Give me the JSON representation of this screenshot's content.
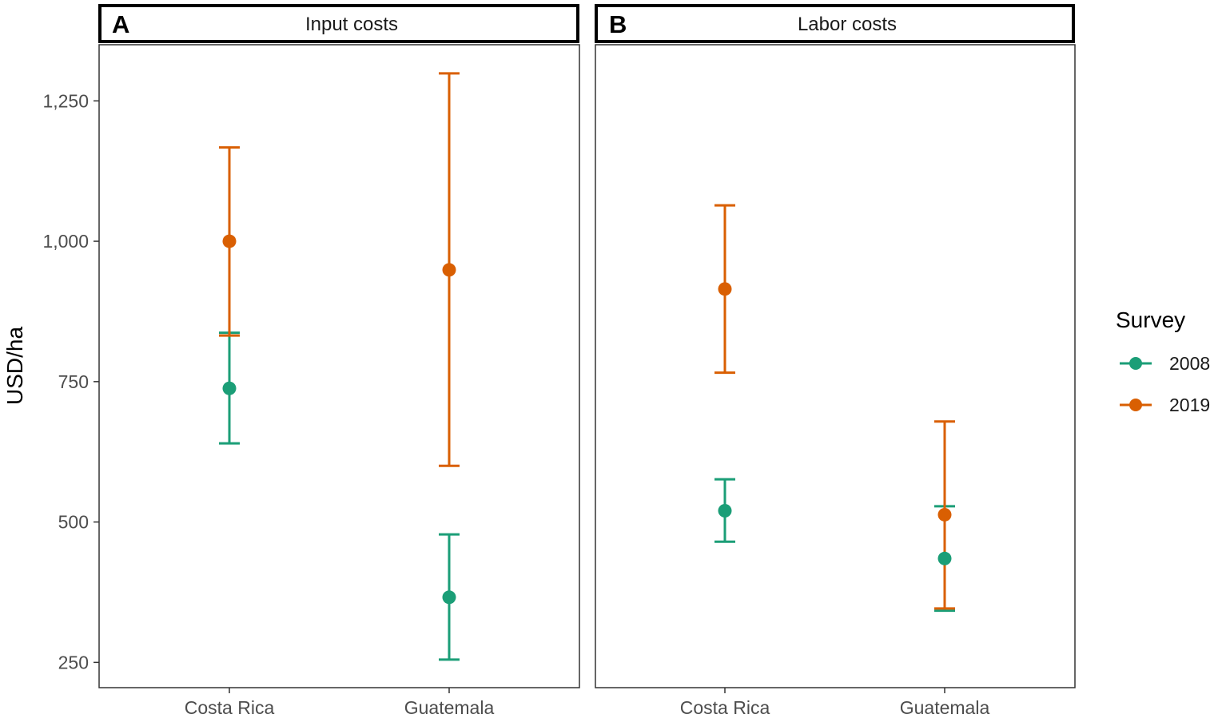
{
  "chart_data": {
    "type": "scatter",
    "subtype": "point-errorbar",
    "ylabel": "USD/ha",
    "ylim": [
      205,
      1350
    ],
    "yticks": [
      250,
      500,
      750,
      1000,
      1250
    ],
    "ytick_labels": [
      "250",
      "500",
      "750",
      "1,000",
      "1,250"
    ],
    "categories": [
      "Costa Rica",
      "Guatemala"
    ],
    "legend": {
      "title": "Survey",
      "position": "right",
      "entries": [
        {
          "name": "2008",
          "color": "#1b9e77"
        },
        {
          "name": "2019",
          "color": "#d95f02"
        }
      ]
    },
    "panels": [
      {
        "letter": "A",
        "title": "Input costs",
        "series": [
          {
            "name": "2008",
            "color": "#1b9e77",
            "points": [
              {
                "category": "Costa Rica",
                "value": 738,
                "lower": 640,
                "upper": 837
              },
              {
                "category": "Guatemala",
                "value": 366,
                "lower": 255,
                "upper": 478
              }
            ]
          },
          {
            "name": "2019",
            "color": "#d95f02",
            "points": [
              {
                "category": "Costa Rica",
                "value": 1000,
                "lower": 832,
                "upper": 1167
              },
              {
                "category": "Guatemala",
                "value": 949,
                "lower": 600,
                "upper": 1299
              }
            ]
          }
        ]
      },
      {
        "letter": "B",
        "title": "Labor costs",
        "series": [
          {
            "name": "2008",
            "color": "#1b9e77",
            "points": [
              {
                "category": "Costa Rica",
                "value": 520,
                "lower": 465,
                "upper": 576
              },
              {
                "category": "Guatemala",
                "value": 435,
                "lower": 342,
                "upper": 528
              }
            ]
          },
          {
            "name": "2019",
            "color": "#d95f02",
            "points": [
              {
                "category": "Costa Rica",
                "value": 915,
                "lower": 766,
                "upper": 1064
              },
              {
                "category": "Guatemala",
                "value": 513,
                "lower": 346,
                "upper": 679
              }
            ]
          }
        ]
      }
    ]
  }
}
